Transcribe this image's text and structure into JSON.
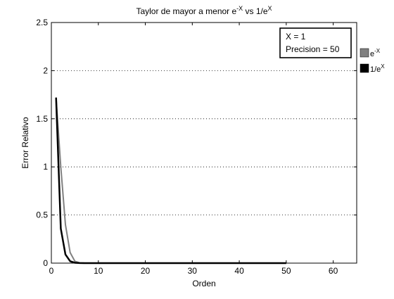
{
  "chart_data": {
    "type": "line",
    "title": {
      "base": "Taylor de mayor a menor e",
      "sup1": "-X",
      "mid": " vs 1/e",
      "sup2": "X"
    },
    "xlabel": "Orden",
    "ylabel": "Error Relativo",
    "xlim": [
      0,
      65
    ],
    "ylim": [
      0,
      2.5
    ],
    "xticks": [
      0,
      10,
      20,
      30,
      40,
      50,
      60
    ],
    "xtick_labels": [
      "0",
      "10",
      "20",
      "30",
      "40",
      "50",
      "60"
    ],
    "yticks": [
      0,
      0.5,
      1,
      1.5,
      2,
      2.5
    ],
    "ytick_labels": [
      "0",
      "0.5",
      "1",
      "1.5",
      "2",
      "2.5"
    ],
    "grid": "y-dotted",
    "annotation": {
      "line1": "X = 1",
      "line2": "Precision = 50"
    },
    "legend": {
      "position": "outside-right",
      "entries": [
        {
          "base": "e",
          "sup": "-X",
          "color": "#808080"
        },
        {
          "base": "1/e",
          "sup": "X",
          "color": "#000000"
        }
      ]
    },
    "series": [
      {
        "color": "#808080",
        "width": 2,
        "x": [
          1,
          2,
          3,
          4,
          5,
          6,
          7,
          8,
          10,
          15,
          20,
          30,
          40,
          50
        ],
        "y": [
          1.72,
          1.0,
          0.4,
          0.11,
          0.02,
          0.003,
          0.0005,
          0,
          0,
          0,
          0,
          0,
          0,
          0
        ]
      },
      {
        "color": "#000000",
        "width": 2.5,
        "x": [
          1,
          2,
          3,
          4,
          5,
          6,
          7,
          8,
          10,
          15,
          20,
          30,
          40,
          50
        ],
        "y": [
          1.72,
          0.36,
          0.09,
          0.02,
          0.004,
          0.0007,
          0.0001,
          0,
          0,
          0,
          0,
          0,
          0,
          0
        ]
      }
    ]
  }
}
